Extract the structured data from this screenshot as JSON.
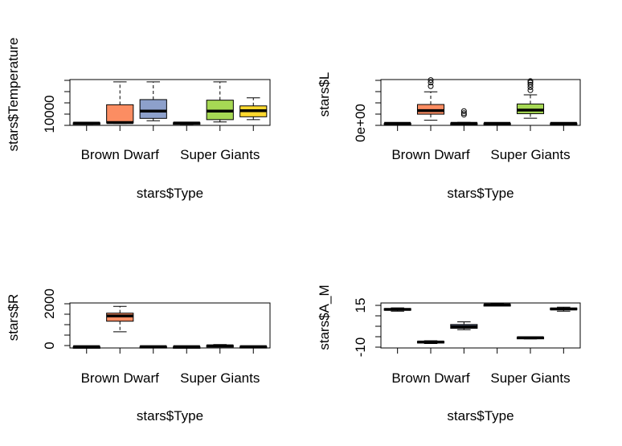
{
  "chart_data": [
    {
      "type": "boxplot",
      "xlabel": "stars$Type",
      "ylabel": "stars$Temperature",
      "x_tick_labels": [
        "Brown Dwarf",
        "Super Giants"
      ],
      "y_tick_labels": [
        "10000"
      ],
      "ylim": [
        1000,
        41000
      ],
      "groups": [
        {
          "color": "#ffffff",
          "min": 1950,
          "q1": 2700,
          "median": 2930,
          "q3": 3250,
          "max": 3600,
          "outliers": []
        },
        {
          "color": "#fc8d62",
          "min": 2700,
          "q1": 3200,
          "median": 3500,
          "q3": 19000,
          "max": 39000,
          "outliers": []
        },
        {
          "color": "#8da0cb",
          "min": 5000,
          "q1": 7100,
          "median": 13500,
          "q3": 23500,
          "max": 39000,
          "outliers": []
        },
        {
          "color": "#ffffff",
          "min": 1900,
          "q1": 2600,
          "median": 3000,
          "q3": 3300,
          "max": 3600,
          "outliers": []
        },
        {
          "color": "#a6d854",
          "min": 4000,
          "q1": 6000,
          "median": 13500,
          "q3": 23000,
          "max": 39000,
          "outliers": []
        },
        {
          "color": "#ffd92f",
          "min": 6000,
          "q1": 8500,
          "median": 13800,
          "q3": 18000,
          "max": 25000,
          "outliers": []
        }
      ]
    },
    {
      "type": "boxplot",
      "xlabel": "stars$Type",
      "ylabel": "stars$L",
      "x_tick_labels": [
        "Brown Dwarf",
        "Super Giants"
      ],
      "y_tick_labels": [
        "0e+00"
      ],
      "ylim": [
        -40000,
        860000
      ],
      "groups": [
        {
          "color": "#ffffff",
          "min": 0,
          "q1": 0,
          "median": 0,
          "q3": 500,
          "max": 1000,
          "outliers": []
        },
        {
          "color": "#fc8d62",
          "min": 60000,
          "q1": 180000,
          "median": 250000,
          "q3": 370000,
          "max": 620000,
          "outliers": [
            730000,
            800000,
            850000
          ]
        },
        {
          "color": "#8da0cb",
          "min": 0,
          "q1": 0,
          "median": 0,
          "q3": 5000,
          "max": 20000,
          "outliers": [
            170000,
            200000,
            240000
          ]
        },
        {
          "color": "#ffffff",
          "min": 0,
          "q1": 0,
          "median": 0,
          "q3": 500,
          "max": 1000,
          "outliers": []
        },
        {
          "color": "#a6d854",
          "min": 100000,
          "q1": 190000,
          "median": 260000,
          "q3": 380000,
          "max": 560000,
          "outliers": [
            650000,
            710000,
            760000,
            800000,
            830000
          ]
        },
        {
          "color": "#ffd92f",
          "min": 0,
          "q1": 0,
          "median": 0,
          "q3": 2000,
          "max": 8000,
          "outliers": []
        }
      ]
    },
    {
      "type": "boxplot",
      "xlabel": "stars$Type",
      "ylabel": "stars$R",
      "x_tick_labels": [
        "Brown Dwarf",
        "Super Giants"
      ],
      "y_tick_labels": [
        "0",
        "2000"
      ],
      "ylim": [
        -60,
        2060
      ],
      "groups": [
        {
          "color": "#ffffff",
          "min": 0,
          "q1": 0,
          "median": 0,
          "q3": 0,
          "max": 0,
          "outliers": []
        },
        {
          "color": "#fc8d62",
          "min": 700,
          "q1": 1200,
          "median": 1450,
          "q3": 1580,
          "max": 1900,
          "outliers": []
        },
        {
          "color": "#8da0cb",
          "min": 0,
          "q1": 0,
          "median": 0,
          "q3": 10,
          "max": 20,
          "outliers": []
        },
        {
          "color": "#ffffff",
          "min": 0,
          "q1": 0,
          "median": 0,
          "q3": 0,
          "max": 0,
          "outliers": []
        },
        {
          "color": "#a6d854",
          "min": 15,
          "q1": 25,
          "median": 40,
          "q3": 60,
          "max": 100,
          "outliers": []
        },
        {
          "color": "#ffd92f",
          "min": 0,
          "q1": 0,
          "median": 0,
          "q3": 10,
          "max": 20,
          "outliers": []
        }
      ]
    },
    {
      "type": "boxplot",
      "xlabel": "stars$Type",
      "ylabel": "stars$A_M",
      "x_tick_labels": [
        "Brown Dwarf",
        "Super Giants"
      ],
      "y_tick_labels": [
        "-10",
        "15"
      ],
      "ylim": [
        -10.8,
        22
      ],
      "groups": [
        {
          "color": "#ffffff",
          "min": 16,
          "q1": 16.7,
          "median": 17.3,
          "q3": 17.9,
          "max": 18.4,
          "outliers": []
        },
        {
          "color": "#fc8d62",
          "min": -7.6,
          "q1": -7.0,
          "median": -6.5,
          "q3": -6.0,
          "max": -5.5,
          "outliers": []
        },
        {
          "color": "#8da0cb",
          "min": 2.5,
          "q1": 3.5,
          "median": 4.7,
          "q3": 6.3,
          "max": 8.2,
          "outliers": []
        },
        {
          "color": "#ffffff",
          "min": 20.0,
          "q1": 20.3,
          "median": 20.6,
          "q3": 20.9,
          "max": 21.4,
          "outliers": []
        },
        {
          "color": "#a6d854",
          "min": -4.2,
          "q1": -3.7,
          "median": -3.3,
          "q3": -3.0,
          "max": -2.6,
          "outliers": []
        },
        {
          "color": "#ffd92f",
          "min": 16.0,
          "q1": 17.0,
          "median": 17.6,
          "q3": 18.3,
          "max": 18.9,
          "outliers": []
        }
      ]
    }
  ]
}
